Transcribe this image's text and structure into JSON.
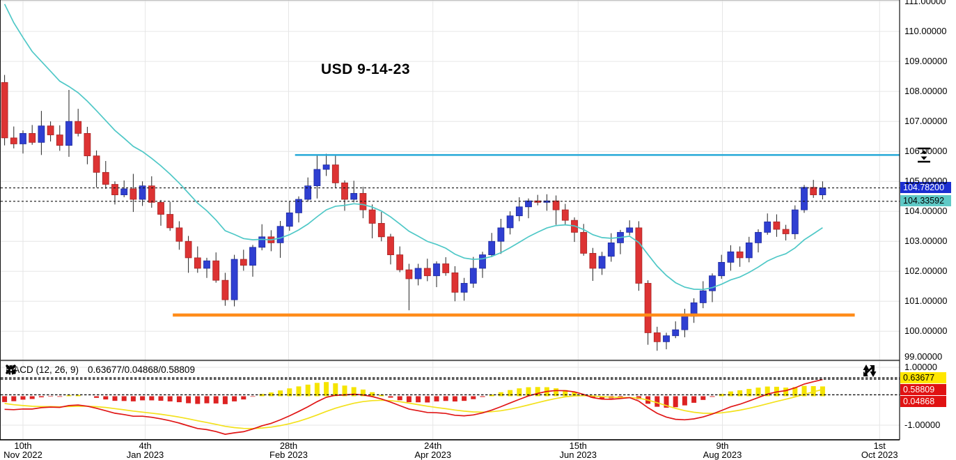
{
  "chart_data": {
    "type": "candlestick_with_macd",
    "title": "USD 9-14-23",
    "price_axis": {
      "min": 99.03,
      "max": 111.05,
      "ticks": [
        {
          "value": 111,
          "label": "111.00000"
        },
        {
          "value": 110,
          "label": "110.00000"
        },
        {
          "value": 109,
          "label": "109.00000"
        },
        {
          "value": 108,
          "label": "108.00000"
        },
        {
          "value": 107,
          "label": "107.00000"
        },
        {
          "value": 106,
          "label": "106.00000"
        },
        {
          "value": 105,
          "label": "105.00000"
        },
        {
          "value": 104,
          "label": "104.00000"
        },
        {
          "value": 103,
          "label": "103.00000"
        },
        {
          "value": 102,
          "label": "102.00000"
        },
        {
          "value": 101,
          "label": "101.00000"
        },
        {
          "value": 100,
          "label": "100.00000"
        },
        {
          "value": 99,
          "label": "99.00000"
        }
      ]
    },
    "time_axis": {
      "ticks": [
        {
          "candle_idx": 2.0,
          "day": "10th",
          "month_year": "Nov 2022"
        },
        {
          "candle_idx": 15.3,
          "day": "4th",
          "month_year": "Jan 2023"
        },
        {
          "candle_idx": 30.9,
          "day": "28th",
          "month_year": "Feb 2023"
        },
        {
          "candle_idx": 46.6,
          "day": "24th",
          "month_year": "Apr 2023"
        },
        {
          "candle_idx": 62.4,
          "day": "15th",
          "month_year": "Jun 2023"
        },
        {
          "candle_idx": 78.1,
          "day": "9th",
          "month_year": "Aug 2023"
        },
        {
          "candle_idx": 95.2,
          "day": "1st",
          "month_year": "Oct 2023"
        }
      ]
    },
    "candles": [
      [
        108.3,
        108.55,
        106.2,
        106.45
      ],
      [
        106.45,
        106.83,
        106.1,
        106.25
      ],
      [
        106.25,
        106.7,
        105.93,
        106.6
      ],
      [
        106.6,
        106.88,
        106.22,
        106.3
      ],
      [
        106.3,
        107.35,
        105.88,
        106.85
      ],
      [
        106.85,
        107.0,
        106.33,
        106.55
      ],
      [
        106.55,
        106.87,
        106.02,
        106.2
      ],
      [
        106.2,
        108.05,
        105.82,
        107.0
      ],
      [
        107.0,
        107.42,
        106.5,
        106.6
      ],
      [
        106.6,
        106.82,
        105.57,
        105.85
      ],
      [
        105.85,
        106.03,
        104.8,
        105.3
      ],
      [
        105.3,
        105.68,
        104.75,
        104.9
      ],
      [
        104.9,
        105.0,
        104.23,
        104.55
      ],
      [
        104.55,
        105.03,
        104.47,
        104.75
      ],
      [
        104.75,
        105.25,
        103.98,
        104.4
      ],
      [
        104.4,
        105.0,
        104.18,
        104.85
      ],
      [
        104.85,
        105.17,
        104.12,
        104.3
      ],
      [
        104.3,
        104.38,
        103.52,
        103.9
      ],
      [
        103.9,
        104.32,
        103.35,
        103.45
      ],
      [
        103.45,
        103.67,
        102.72,
        103.0
      ],
      [
        103.0,
        103.18,
        101.95,
        102.45
      ],
      [
        102.45,
        102.83,
        101.95,
        102.1
      ],
      [
        102.1,
        102.45,
        101.78,
        102.35
      ],
      [
        102.35,
        102.63,
        101.62,
        101.7
      ],
      [
        101.7,
        101.95,
        100.85,
        101.05
      ],
      [
        101.05,
        102.55,
        100.83,
        102.4
      ],
      [
        102.4,
        102.72,
        102.02,
        102.2
      ],
      [
        102.2,
        102.88,
        101.82,
        102.8
      ],
      [
        102.8,
        103.57,
        102.7,
        103.15
      ],
      [
        103.15,
        103.37,
        102.67,
        102.95
      ],
      [
        102.95,
        103.68,
        102.45,
        103.5
      ],
      [
        103.5,
        104.33,
        103.35,
        103.95
      ],
      [
        103.95,
        104.5,
        103.63,
        104.4
      ],
      [
        104.4,
        105.13,
        104.32,
        104.85
      ],
      [
        104.85,
        105.9,
        104.43,
        105.4
      ],
      [
        105.4,
        105.92,
        105.18,
        105.55
      ],
      [
        105.55,
        105.87,
        104.77,
        104.95
      ],
      [
        104.95,
        105.03,
        104.02,
        104.4
      ],
      [
        104.4,
        105.02,
        104.3,
        104.6
      ],
      [
        104.6,
        104.82,
        103.77,
        104.05
      ],
      [
        104.05,
        104.23,
        103.1,
        103.6
      ],
      [
        103.6,
        103.98,
        103.0,
        103.15
      ],
      [
        103.15,
        103.25,
        102.23,
        102.55
      ],
      [
        102.55,
        102.83,
        101.97,
        102.05
      ],
      [
        102.05,
        102.25,
        100.7,
        101.75
      ],
      [
        101.75,
        102.25,
        101.53,
        102.1
      ],
      [
        102.1,
        102.42,
        101.67,
        101.85
      ],
      [
        101.85,
        102.33,
        101.47,
        102.25
      ],
      [
        102.25,
        102.47,
        101.85,
        101.95
      ],
      [
        101.95,
        102.17,
        101.0,
        101.3
      ],
      [
        101.3,
        101.78,
        101.02,
        101.6
      ],
      [
        101.6,
        102.48,
        101.45,
        102.1
      ],
      [
        102.1,
        102.65,
        101.78,
        102.55
      ],
      [
        102.55,
        103.28,
        102.47,
        103.0
      ],
      [
        103.0,
        103.75,
        102.58,
        103.45
      ],
      [
        103.45,
        104.0,
        103.23,
        103.85
      ],
      [
        103.85,
        104.47,
        103.67,
        104.15
      ],
      [
        104.15,
        104.43,
        103.77,
        104.35
      ],
      [
        104.35,
        104.55,
        104.2,
        104.3
      ],
      [
        104.3,
        104.57,
        104.02,
        104.35
      ],
      [
        104.35,
        104.53,
        103.55,
        104.05
      ],
      [
        104.05,
        104.25,
        103.55,
        103.7
      ],
      [
        103.7,
        103.8,
        102.98,
        103.3
      ],
      [
        103.3,
        103.58,
        102.52,
        102.6
      ],
      [
        102.6,
        102.78,
        101.68,
        102.1
      ],
      [
        102.1,
        102.65,
        101.88,
        102.5
      ],
      [
        102.5,
        103.27,
        102.32,
        102.95
      ],
      [
        102.95,
        103.38,
        102.57,
        103.3
      ],
      [
        103.3,
        103.7,
        103.2,
        103.45
      ],
      [
        103.45,
        103.67,
        101.35,
        101.6
      ],
      [
        101.6,
        101.7,
        99.55,
        99.95
      ],
      [
        99.95,
        100.15,
        99.35,
        99.65
      ],
      [
        99.65,
        99.95,
        99.4,
        99.85
      ],
      [
        99.85,
        100.33,
        99.77,
        100.05
      ],
      [
        100.05,
        100.75,
        99.8,
        100.5
      ],
      [
        100.5,
        101.1,
        100.28,
        100.95
      ],
      [
        100.95,
        101.67,
        100.77,
        101.35
      ],
      [
        101.35,
        101.93,
        100.97,
        101.85
      ],
      [
        101.85,
        102.55,
        101.75,
        102.3
      ],
      [
        102.3,
        102.87,
        102.02,
        102.65
      ],
      [
        102.65,
        102.83,
        102.15,
        102.45
      ],
      [
        102.45,
        103.15,
        102.3,
        102.95
      ],
      [
        102.95,
        103.4,
        102.63,
        103.3
      ],
      [
        103.3,
        103.93,
        103.22,
        103.65
      ],
      [
        103.65,
        103.9,
        103.15,
        103.4
      ],
      [
        103.4,
        103.55,
        103.03,
        103.25
      ],
      [
        103.25,
        104.2,
        103.07,
        104.05
      ],
      [
        104.05,
        104.88,
        103.95,
        104.8
      ],
      [
        104.8,
        105.05,
        104.45,
        104.55
      ],
      [
        104.55,
        105.0,
        104.4,
        104.78
      ]
    ],
    "moving_average": {
      "type": "EMA",
      "period": 14,
      "seed": 111.6
    },
    "annotations": {
      "resistance_line": {
        "price": 105.88,
        "from_candle": 31.6,
        "to_candle": 97.4
      },
      "support_line": {
        "price": 100.54,
        "from_candle": 18.3,
        "to_candle": 92.5
      },
      "last_price_line": {
        "price": 104.782,
        "style": "dashed"
      },
      "ma_price_line": {
        "price": 104.336,
        "style": "dashed"
      }
    },
    "price_badges": [
      {
        "label": "104.78200",
        "style": "blue",
        "value": 104.782
      },
      {
        "label": "104.33592",
        "style": "teal",
        "value": 104.336
      }
    ],
    "macd": {
      "label": "MACD (12, 26, 9)",
      "params": [
        12,
        26,
        9
      ],
      "values_text": "0.63677/0.04868/0.58809",
      "axis": {
        "max": 1.24,
        "min": -1.506,
        "ticks": [
          {
            "value": 1,
            "label": "1.00000"
          },
          {
            "value": -1,
            "label": "-1.00000"
          }
        ]
      },
      "dashed_levels": [
        0.63677,
        0.58809,
        0.04868
      ],
      "badges": [
        {
          "label": "0.63677",
          "style": "yellow"
        },
        {
          "label": "0.58809",
          "style": "red"
        },
        {
          "label": "0.04868",
          "style": "red"
        }
      ],
      "render": {
        "fast": 12,
        "slow": 26,
        "signal": 9,
        "seed_fast": 106.9,
        "seed_slow": 107.35,
        "seed_signal": -0.2
      }
    }
  },
  "colors": {
    "candle_up": "#2f3fd2",
    "candle_up_edge": "#1e2a9e",
    "candle_down": "#dd3333",
    "candle_down_edge": "#a82424",
    "wick": "#222222",
    "ma": "#4fc8c7",
    "resistance": "#27a9d8",
    "support": "#ff8c1a",
    "macd_line": "#e01616",
    "signal_line": "#f3e11c",
    "hist_pos": "#f5e400",
    "hist_neg": "#dd2222",
    "grid": "#e6e6e6",
    "border": "#111111"
  },
  "icons": {
    "macd_toolbar": [
      "visibility-icon",
      "close-icon",
      "settings-icon"
    ],
    "macd_corner": [
      "vertical-scale-icon",
      "expand-icon"
    ],
    "price_axis": [
      "line-drag-handle-icon"
    ]
  }
}
